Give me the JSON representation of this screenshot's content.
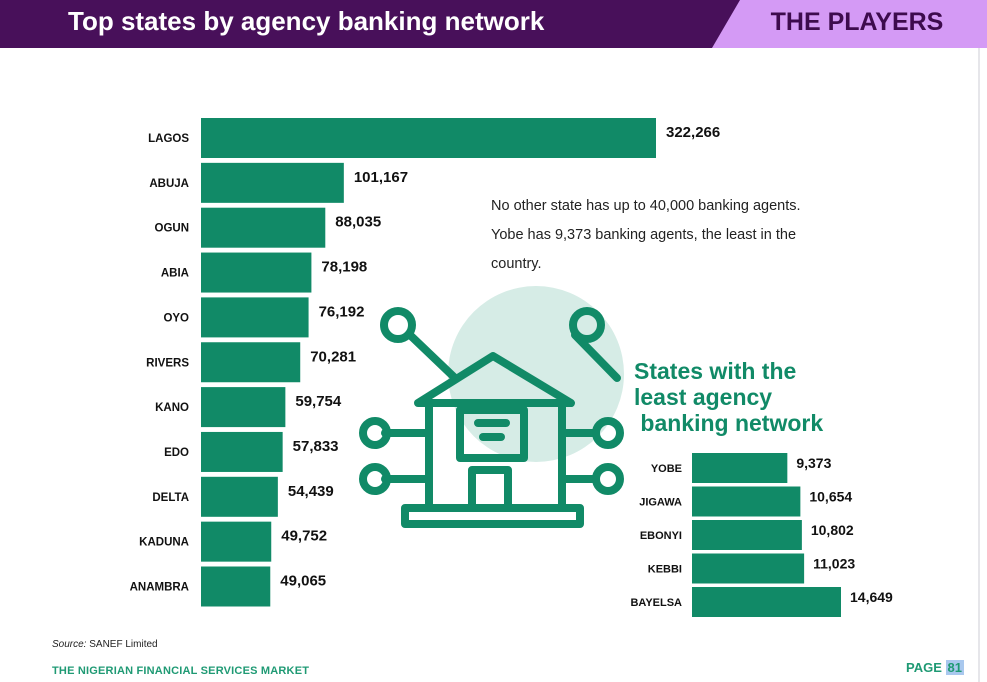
{
  "header": {
    "title": "Top states by agency banking network",
    "section": "THE PLAYERS"
  },
  "note": "No other state has up to 40,000 banking agents. Yobe has 9,373 banking agents, the least in the country.",
  "least_title_lines": [
    "States with the",
    "least agency",
    " banking network"
  ],
  "source": {
    "label": "Source:",
    "text": "SANEF Limited"
  },
  "footer": {
    "publication": "THE NIGERIAN FINANCIAL SERVICES MARKET",
    "page_label": "PAGE",
    "page_number": "81"
  },
  "colors": {
    "bar": "#118a67",
    "header": "#48105a",
    "tab": "#d49af5",
    "icon": "#118a67",
    "icon_circle": "#d6ece6"
  },
  "icon": "bank-network-icon",
  "chart_data": [
    {
      "type": "bar",
      "orientation": "horizontal",
      "title": "Top states by agency banking network",
      "categories": [
        "LAGOS",
        "ABUJA",
        "OGUN",
        "ABIA",
        "OYO",
        "RIVERS",
        "KANO",
        "EDO",
        "DELTA",
        "KADUNA",
        "ANAMBRA"
      ],
      "values": [
        322266,
        101167,
        88035,
        78198,
        76192,
        70281,
        59754,
        57833,
        54439,
        49752,
        49065
      ],
      "value_labels": [
        "322,266",
        "101,167",
        "88,035",
        "78,198",
        "76,192",
        "70,281",
        "59,754",
        "57,833",
        "54,439",
        "49,752",
        "49,065"
      ],
      "xlim": [
        0,
        322266
      ],
      "grid": false,
      "legend": "none"
    },
    {
      "type": "bar",
      "orientation": "horizontal",
      "title": "States with the least agency banking network",
      "categories": [
        "YOBE",
        "JIGAWA",
        "EBONYI",
        "KEBBI",
        "BAYELSA"
      ],
      "values": [
        9373,
        10654,
        10802,
        11023,
        14649
      ],
      "value_labels": [
        "9,373",
        "10,654",
        "10,802",
        "11,023",
        "14,649"
      ],
      "xlim": [
        0,
        14649
      ],
      "grid": false,
      "legend": "none"
    }
  ]
}
